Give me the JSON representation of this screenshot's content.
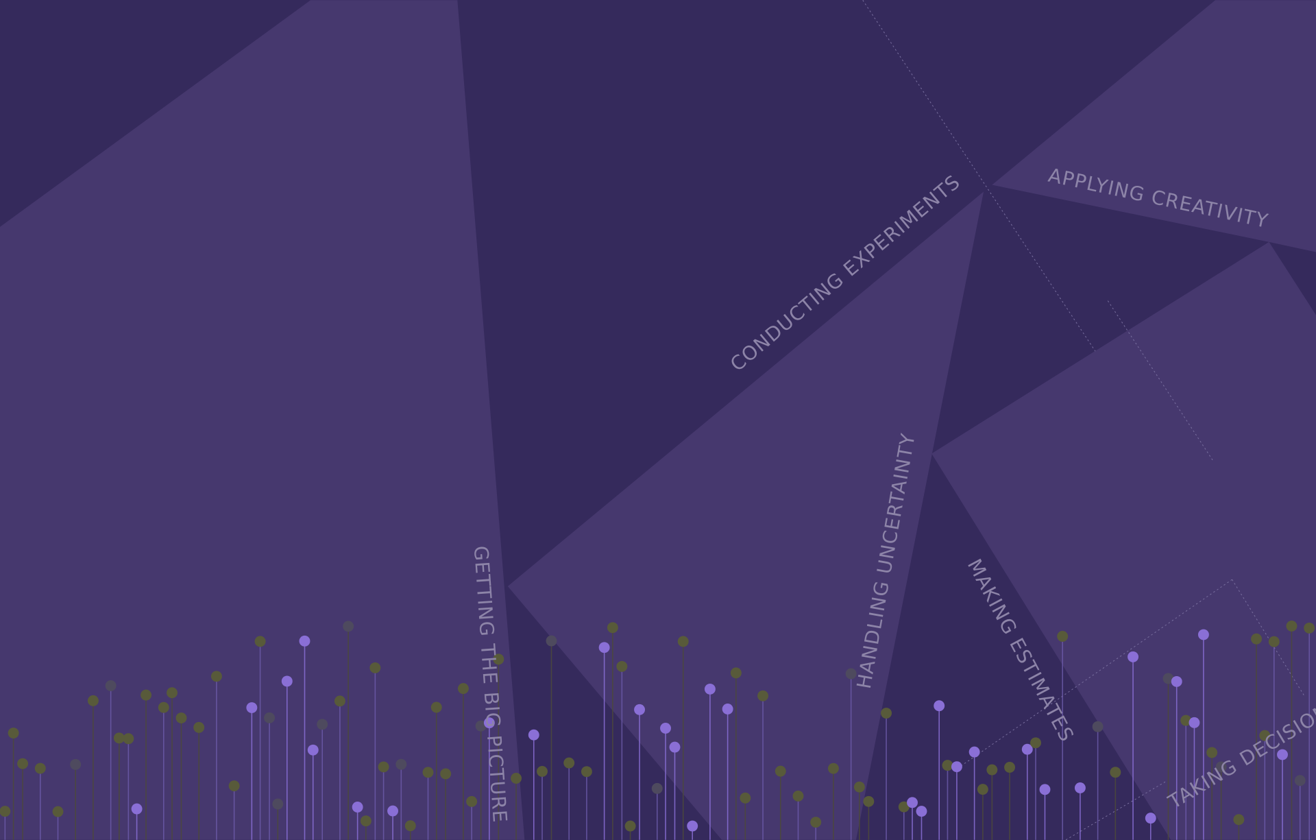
{
  "labels": [
    "CONDUCTING EXPERIMENTS",
    "APPLYING CREATIVITY",
    "HANDLING UNCERTAINTY",
    "MAKING ESTIMATES",
    "GETTING THE BIG PICTURE",
    "TAKING DECISIONS"
  ]
}
